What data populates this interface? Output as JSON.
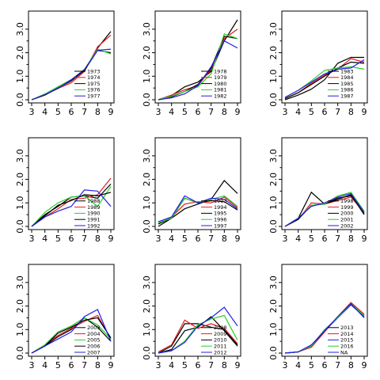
{
  "colors": {
    "black": "#000000",
    "red": "#e41a1c",
    "green": "#2ecc2e",
    "blue": "#1f1fe6"
  },
  "chart_data": [
    {
      "type": "line",
      "x": [
        3,
        4,
        5,
        6,
        7,
        8,
        9
      ],
      "xlim": [
        3,
        9
      ],
      "ylim": [
        0,
        3.5
      ],
      "xticks": [
        "3",
        "4",
        "5",
        "6",
        "7",
        "8",
        "9"
      ],
      "yticks": [
        "0.0",
        "1.0",
        "2.0",
        "3.0"
      ],
      "legend": "center-right",
      "series": [
        {
          "name": "1973",
          "color": "black",
          "values": [
            0.0,
            0.22,
            0.55,
            0.85,
            1.25,
            2.2,
            2.9
          ]
        },
        {
          "name": "1974",
          "color": "red",
          "values": [
            0.0,
            0.2,
            0.48,
            0.72,
            1.2,
            2.25,
            2.75
          ]
        },
        {
          "name": "1975",
          "color": "black",
          "values": [
            0.0,
            0.2,
            0.5,
            0.8,
            1.25,
            2.1,
            2.0
          ]
        },
        {
          "name": "1976",
          "color": "green",
          "values": [
            0.0,
            0.25,
            0.55,
            0.85,
            1.3,
            2.15,
            1.95
          ]
        },
        {
          "name": "1977",
          "color": "blue",
          "values": [
            0.0,
            0.22,
            0.48,
            0.85,
            1.28,
            2.1,
            2.15
          ]
        }
      ]
    },
    {
      "type": "line",
      "x": [
        3,
        4,
        5,
        6,
        7,
        8,
        9
      ],
      "xlim": [
        3,
        9
      ],
      "ylim": [
        0,
        3.5
      ],
      "xticks": [
        "3",
        "4",
        "5",
        "6",
        "7",
        "8",
        "9"
      ],
      "yticks": [
        "0.0",
        "1.0",
        "2.0",
        "3.0"
      ],
      "legend": "center-right",
      "series": [
        {
          "name": "1978",
          "color": "black",
          "values": [
            0.0,
            0.18,
            0.55,
            0.75,
            1.2,
            2.5,
            3.4
          ]
        },
        {
          "name": "1979",
          "color": "red",
          "values": [
            0.0,
            0.2,
            0.42,
            0.6,
            1.3,
            2.6,
            3.0
          ]
        },
        {
          "name": "1980",
          "color": "black",
          "values": [
            0.0,
            0.12,
            0.35,
            0.65,
            1.35,
            2.7,
            2.6
          ]
        },
        {
          "name": "1981",
          "color": "green",
          "values": [
            0.0,
            0.15,
            0.35,
            0.55,
            1.1,
            2.8,
            2.6
          ]
        },
        {
          "name": "1982",
          "color": "blue",
          "values": [
            0.0,
            0.08,
            0.25,
            0.6,
            1.4,
            2.5,
            2.2
          ]
        }
      ]
    },
    {
      "type": "line",
      "x": [
        3,
        4,
        5,
        6,
        7,
        8,
        9
      ],
      "xlim": [
        3,
        9
      ],
      "ylim": [
        0,
        3.5
      ],
      "xticks": [
        "3",
        "4",
        "5",
        "6",
        "7",
        "8",
        "9"
      ],
      "yticks": [
        "0.0",
        "1.0",
        "2.0",
        "3.0"
      ],
      "legend": "center-right",
      "series": [
        {
          "name": "1983",
          "color": "black",
          "values": [
            0.0,
            0.2,
            0.45,
            0.85,
            1.55,
            1.8,
            1.8
          ]
        },
        {
          "name": "1984",
          "color": "red",
          "values": [
            0.05,
            0.3,
            0.7,
            1.05,
            1.3,
            1.75,
            1.6
          ]
        },
        {
          "name": "1985",
          "color": "black",
          "values": [
            0.05,
            0.3,
            0.65,
            1.0,
            1.35,
            1.6,
            1.55
          ]
        },
        {
          "name": "1986",
          "color": "green",
          "values": [
            0.1,
            0.4,
            0.8,
            1.25,
            1.35,
            1.4,
            1.3
          ]
        },
        {
          "name": "1987",
          "color": "blue",
          "values": [
            0.1,
            0.4,
            0.75,
            1.1,
            1.3,
            1.35,
            1.7
          ]
        }
      ]
    },
    {
      "type": "line",
      "x": [
        3,
        4,
        5,
        6,
        7,
        8,
        9
      ],
      "xlim": [
        3,
        9
      ],
      "ylim": [
        0,
        3.5
      ],
      "xticks": [
        "3",
        "4",
        "5",
        "6",
        "7",
        "8",
        "9"
      ],
      "yticks": [
        "0.0",
        "1.0",
        "2.0",
        "3.0"
      ],
      "legend": "bottom-right",
      "series": [
        {
          "name": "1988",
          "color": "black",
          "values": [
            0.0,
            0.5,
            0.85,
            1.25,
            1.3,
            1.2,
            1.8
          ]
        },
        {
          "name": "1989",
          "color": "red",
          "values": [
            0.0,
            0.4,
            0.75,
            1.15,
            1.2,
            1.35,
            2.05
          ]
        },
        {
          "name": "1990",
          "color": "green",
          "values": [
            0.0,
            0.6,
            1.0,
            1.25,
            1.3,
            0.85,
            1.7
          ]
        },
        {
          "name": "1991",
          "color": "black",
          "values": [
            0.0,
            0.45,
            0.9,
            1.1,
            1.35,
            1.3,
            1.45
          ]
        },
        {
          "name": "1992",
          "color": "blue",
          "values": [
            0.0,
            0.4,
            0.65,
            0.85,
            1.55,
            1.5,
            0.85
          ]
        }
      ]
    },
    {
      "type": "line",
      "x": [
        3,
        4,
        5,
        6,
        7,
        8,
        9
      ],
      "xlim": [
        3,
        9
      ],
      "ylim": [
        0,
        3.5
      ],
      "xticks": [
        "3",
        "4",
        "5",
        "6",
        "7",
        "8",
        "9"
      ],
      "yticks": [
        "0.0",
        "1.0",
        "2.0",
        "3.0"
      ],
      "legend": "bottom-right",
      "series": [
        {
          "name": "1993",
          "color": "black",
          "values": [
            0.0,
            0.35,
            0.75,
            0.95,
            1.15,
            1.95,
            1.4
          ]
        },
        {
          "name": "1994",
          "color": "red",
          "values": [
            0.1,
            0.4,
            0.95,
            1.05,
            1.0,
            1.25,
            0.8
          ]
        },
        {
          "name": "1995",
          "color": "black",
          "values": [
            0.1,
            0.35,
            1.2,
            1.0,
            1.1,
            1.05,
            0.7
          ]
        },
        {
          "name": "1996",
          "color": "green",
          "values": [
            0.15,
            0.35,
            1.2,
            1.0,
            1.15,
            1.3,
            0.85
          ]
        },
        {
          "name": "1997",
          "color": "blue",
          "values": [
            0.2,
            0.4,
            1.3,
            1.0,
            1.2,
            1.15,
            0.75
          ]
        }
      ]
    },
    {
      "type": "line",
      "x": [
        3,
        4,
        5,
        6,
        7,
        8,
        9
      ],
      "xlim": [
        3,
        9
      ],
      "ylim": [
        0,
        3.5
      ],
      "xticks": [
        "3",
        "4",
        "5",
        "6",
        "7",
        "8",
        "9"
      ],
      "yticks": [
        "0.0",
        "1.0",
        "2.0",
        "3.0"
      ],
      "legend": "bottom-right",
      "series": [
        {
          "name": "1998",
          "color": "black",
          "values": [
            0.0,
            0.35,
            1.45,
            0.95,
            1.2,
            1.3,
            0.55
          ]
        },
        {
          "name": "1999",
          "color": "red",
          "values": [
            0.0,
            0.3,
            1.0,
            0.95,
            1.1,
            1.25,
            0.6
          ]
        },
        {
          "name": "2000",
          "color": "black",
          "values": [
            0.0,
            0.3,
            0.9,
            0.95,
            1.15,
            1.35,
            0.5
          ]
        },
        {
          "name": "2001",
          "color": "green",
          "values": [
            0.0,
            0.35,
            0.9,
            0.95,
            1.3,
            1.45,
            0.65
          ]
        },
        {
          "name": "2002",
          "color": "blue",
          "values": [
            0.0,
            0.35,
            0.85,
            1.0,
            1.25,
            1.4,
            0.6
          ]
        }
      ]
    },
    {
      "type": "line",
      "x": [
        3,
        4,
        5,
        6,
        7,
        8,
        9
      ],
      "xlim": [
        3,
        9
      ],
      "ylim": [
        0,
        3.5
      ],
      "xticks": [
        "3",
        "4",
        "5",
        "6",
        "7",
        "8",
        "9"
      ],
      "yticks": [
        "0.0",
        "1.0",
        "2.0",
        "3.0"
      ],
      "legend": "bottom-right",
      "series": [
        {
          "name": "2003",
          "color": "black",
          "values": [
            0.0,
            0.3,
            0.7,
            1.0,
            1.5,
            1.1,
            0.5
          ]
        },
        {
          "name": "2004",
          "color": "red",
          "values": [
            0.0,
            0.35,
            0.75,
            1.05,
            1.35,
            1.6,
            0.6
          ]
        },
        {
          "name": "2005",
          "color": "green",
          "values": [
            0.0,
            0.35,
            0.9,
            1.15,
            1.5,
            1.2,
            0.6
          ]
        },
        {
          "name": "2006",
          "color": "black",
          "values": [
            0.0,
            0.3,
            0.85,
            1.1,
            1.4,
            1.5,
            0.65
          ]
        },
        {
          "name": "2007",
          "color": "blue",
          "values": [
            0.0,
            0.3,
            0.6,
            0.9,
            1.55,
            1.85,
            0.5
          ]
        }
      ]
    },
    {
      "type": "line",
      "x": [
        3,
        4,
        5,
        6,
        7,
        8,
        9
      ],
      "xlim": [
        3,
        9
      ],
      "ylim": [
        0,
        3.5
      ],
      "xticks": [
        "3",
        "4",
        "5",
        "6",
        "7",
        "8",
        "9"
      ],
      "yticks": [
        "0.0",
        "1.0",
        "2.0",
        "3.0"
      ],
      "legend": "bottom-right",
      "series": [
        {
          "name": "2008",
          "color": "black",
          "values": [
            0.0,
            0.3,
            1.25,
            1.25,
            1.1,
            1.0,
            0.35
          ]
        },
        {
          "name": "2009",
          "color": "red",
          "values": [
            0.05,
            0.35,
            1.4,
            1.05,
            1.25,
            1.05,
            0.4
          ]
        },
        {
          "name": "2010",
          "color": "black",
          "values": [
            0.0,
            0.15,
            0.95,
            1.1,
            1.55,
            0.95,
            0.3
          ]
        },
        {
          "name": "2011",
          "color": "green",
          "values": [
            0.0,
            0.1,
            0.5,
            1.2,
            1.45,
            1.6,
            0.55
          ]
        },
        {
          "name": "2012",
          "color": "blue",
          "values": [
            0.0,
            0.1,
            0.45,
            1.15,
            1.5,
            1.95,
            1.15
          ]
        }
      ]
    },
    {
      "type": "line",
      "x": [
        3,
        4,
        5,
        6,
        7,
        8,
        9
      ],
      "xlim": [
        3,
        9
      ],
      "ylim": [
        0,
        3.5
      ],
      "xticks": [
        "3",
        "4",
        "5",
        "6",
        "7",
        "8",
        "9"
      ],
      "yticks": [
        "0.0",
        "1.0",
        "2.0",
        "3.0"
      ],
      "legend": "bottom-right",
      "series": [
        {
          "name": "2013",
          "color": "black",
          "values": [
            0.0,
            0.05,
            0.3,
            0.95,
            1.5,
            2.1,
            1.6
          ]
        },
        {
          "name": "2014",
          "color": "red",
          "values": [
            0.0,
            0.05,
            0.25,
            0.9,
            1.55,
            2.15,
            1.65
          ]
        },
        {
          "name": "2015",
          "color": "blue",
          "values": [
            0.0,
            0.05,
            0.3,
            0.95,
            1.5,
            2.05,
            1.55
          ]
        },
        {
          "name": "2016",
          "color": "green",
          "values": [
            0.0,
            0.05,
            0.3,
            1.0,
            1.5,
            2.1,
            1.6
          ]
        },
        {
          "name": "NA",
          "color": "blue",
          "values": [
            0.0,
            0.05,
            0.35,
            0.95,
            1.55,
            2.1,
            1.5
          ]
        }
      ]
    }
  ]
}
